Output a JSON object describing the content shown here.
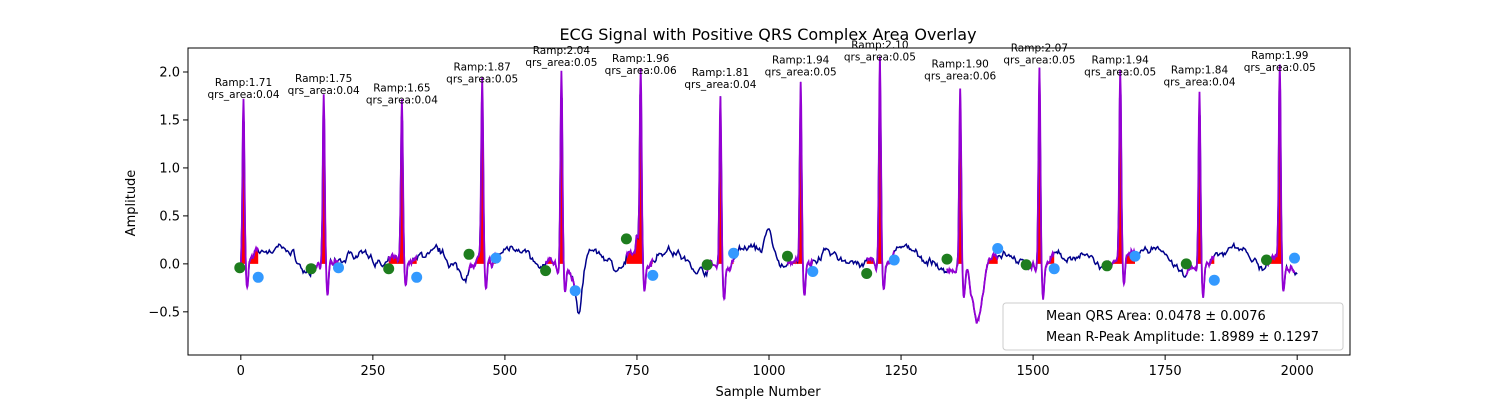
{
  "chart_data": {
    "type": "line",
    "title": "ECG Signal with Positive QRS Complex Area Overlay",
    "xlabel": "Sample Number",
    "ylabel": "Amplitude",
    "xlim": [
      -100,
      2100
    ],
    "ylim": [
      -0.95,
      2.25
    ],
    "xticks": [
      0,
      250,
      500,
      750,
      1000,
      1250,
      1500,
      1750,
      2000
    ],
    "yticks": [
      -0.5,
      0.0,
      0.5,
      1.0,
      1.5,
      2.0
    ],
    "ytick_labels": [
      "−0.5",
      "0.0",
      "0.5",
      "1.0",
      "1.5",
      "2.0"
    ],
    "grid": false,
    "legend_position": "bottom-right",
    "colors": {
      "signal": "#00008b",
      "qrs_segment": "#9400d3",
      "qrs_area_fill": "#ff0000",
      "q_point": "#1e7d1e",
      "s_point": "#3399ff"
    },
    "legend": [
      "Mean QRS Area: 0.0478 ± 0.0076",
      "Mean R-Peak Amplitude: 1.8989 ± 0.1297"
    ],
    "beats": [
      {
        "r_x": 5,
        "r_amp": 1.71,
        "q_x": -2,
        "q_y": -0.04,
        "s_x": 33,
        "s_y": -0.14,
        "annotation": [
          "Ramp:1.71",
          "qrs_area:0.04"
        ]
      },
      {
        "r_x": 157,
        "r_amp": 1.75,
        "q_x": 133,
        "q_y": -0.05,
        "s_x": 185,
        "s_y": -0.04,
        "annotation": [
          "Ramp:1.75",
          "qrs_area:0.04"
        ]
      },
      {
        "r_x": 305,
        "r_amp": 1.65,
        "q_x": 280,
        "q_y": -0.05,
        "s_x": 333,
        "s_y": -0.14,
        "annotation": [
          "Ramp:1.65",
          "qrs_area:0.04"
        ]
      },
      {
        "r_x": 457,
        "r_amp": 1.87,
        "q_x": 432,
        "q_y": 0.1,
        "s_x": 483,
        "s_y": 0.06,
        "annotation": [
          "Ramp:1.87",
          "qrs_area:0.05"
        ]
      },
      {
        "r_x": 607,
        "r_amp": 2.04,
        "q_x": 577,
        "q_y": -0.07,
        "s_x": 633,
        "s_y": -0.28,
        "annotation": [
          "Ramp:2.04",
          "qrs_area:0.05"
        ]
      },
      {
        "r_x": 757,
        "r_amp": 1.96,
        "q_x": 730,
        "q_y": 0.26,
        "s_x": 780,
        "s_y": -0.12,
        "annotation": [
          "Ramp:1.96",
          "qrs_area:0.06"
        ]
      },
      {
        "r_x": 908,
        "r_amp": 1.81,
        "q_x": 883,
        "q_y": -0.01,
        "s_x": 933,
        "s_y": 0.11,
        "annotation": [
          "Ramp:1.81",
          "qrs_area:0.04"
        ]
      },
      {
        "r_x": 1060,
        "r_amp": 1.94,
        "q_x": 1035,
        "q_y": 0.08,
        "s_x": 1083,
        "s_y": -0.08,
        "annotation": [
          "Ramp:1.94",
          "qrs_area:0.05"
        ]
      },
      {
        "r_x": 1210,
        "r_amp": 2.1,
        "q_x": 1185,
        "q_y": -0.1,
        "s_x": 1237,
        "s_y": 0.04,
        "annotation": [
          "Ramp:2.10",
          "qrs_area:0.05"
        ]
      },
      {
        "r_x": 1362,
        "r_amp": 1.9,
        "q_x": 1337,
        "q_y": 0.05,
        "s_x": 1433,
        "s_y": 0.16,
        "annotation": [
          "Ramp:1.90",
          "qrs_area:0.06"
        ]
      },
      {
        "r_x": 1512,
        "r_amp": 2.07,
        "q_x": 1487,
        "q_y": -0.01,
        "s_x": 1540,
        "s_y": -0.05,
        "annotation": [
          "Ramp:2.07",
          "qrs_area:0.05"
        ]
      },
      {
        "r_x": 1665,
        "r_amp": 1.94,
        "q_x": 1640,
        "q_y": -0.02,
        "s_x": 1693,
        "s_y": 0.08,
        "annotation": [
          "Ramp:1.94",
          "qrs_area:0.05"
        ]
      },
      {
        "r_x": 1815,
        "r_amp": 1.84,
        "q_x": 1790,
        "q_y": 0.0,
        "s_x": 1843,
        "s_y": -0.17,
        "annotation": [
          "Ramp:1.84",
          "qrs_area:0.04"
        ]
      },
      {
        "r_x": 1967,
        "r_amp": 1.99,
        "q_x": 1942,
        "q_y": 0.04,
        "s_x": 1995,
        "s_y": 0.06,
        "annotation": [
          "Ramp:1.99",
          "qrs_area:0.05"
        ]
      }
    ]
  }
}
